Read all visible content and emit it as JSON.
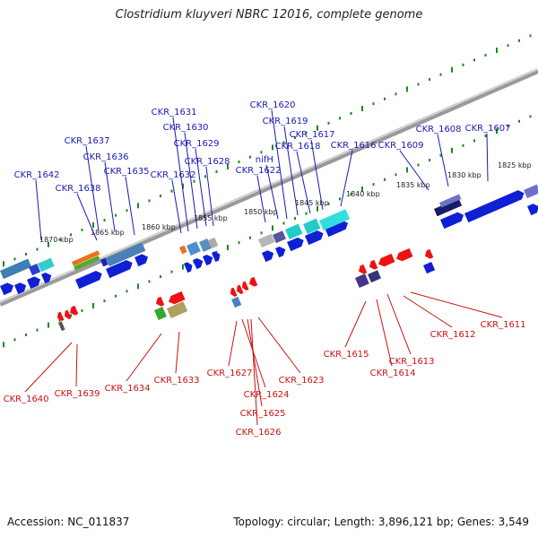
{
  "title": "Clostridium kluyveri NBRC 12016, complete genome",
  "footer": {
    "accession": "Accession: NC_011837",
    "summary": "Topology: circular; Length: 3,896,121 bp; Genes: 3,549"
  },
  "colors": {
    "forward": "#0f1fd6",
    "reverse": "#ee1111",
    "label_forward": "#1a1ab4",
    "label_reverse": "#cc1111",
    "backbone": "#8a8a8a",
    "ticks": "#1a8a1a"
  },
  "scale_labels": [
    "1870 kbp",
    "1865 kbp",
    "1860 kbp",
    "1855 kbp",
    "1850 kbp",
    "1845 kbp",
    "1840 kbp",
    "1835 kbp",
    "1830 kbp",
    "1825 kbp"
  ],
  "top_genes": [
    "CKR_1642",
    "CKR_1638",
    "CKR_1637",
    "CKR_1636",
    "CKR_1635",
    "CKR_1632",
    "CKR_1631",
    "CKR_1630",
    "CKR_1629",
    "CKR_1628",
    "CKR_1622",
    "nifH",
    "CKR_1620",
    "CKR_1619",
    "CKR_1618",
    "CKR_1617",
    "CKR_1616",
    "CKR_1609",
    "CKR_1608",
    "CKR_1607"
  ],
  "bottom_genes": [
    "CKR_1640",
    "CKR_1639",
    "CKR_1634",
    "CKR_1633",
    "CKR_1627",
    "CKR_1624",
    "CKR_1625",
    "CKR_1626",
    "CKR_1623",
    "CKR_1615",
    "CKR_1614",
    "CKR_1613",
    "CKR_1612",
    "CKR_1611"
  ]
}
